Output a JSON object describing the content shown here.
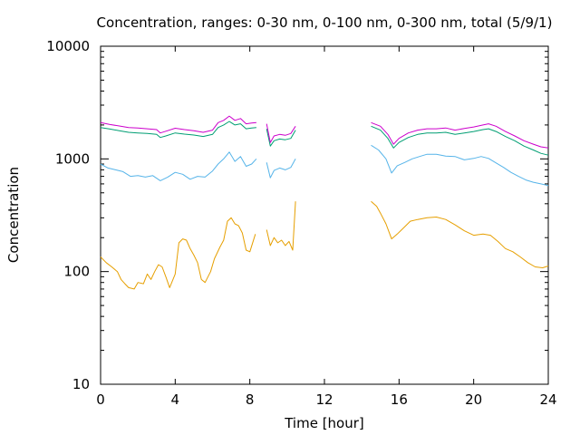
{
  "chart_data": {
    "type": "line",
    "title": "Concentration, ranges: 0-30 nm, 0-100 nm, 0-300 nm, total (5/9/1)",
    "xlabel": "Time [hour]",
    "ylabel": "Concentration",
    "xlim": [
      0,
      24
    ],
    "ylim": [
      10,
      10000
    ],
    "yscale": "log",
    "grid": false,
    "legend": "none",
    "x_ticks": [
      0,
      4,
      8,
      12,
      16,
      20,
      24
    ],
    "x_tick_labels": [
      "0",
      "4",
      "8",
      "12",
      "16",
      "20",
      "24"
    ],
    "y_ticks": [
      10,
      100,
      1000,
      10000
    ],
    "y_tick_labels": [
      "10",
      "100",
      "1000",
      "10000"
    ],
    "series": [
      {
        "color": "#e69f00",
        "segments": [
          [
            [
              0,
              135
            ],
            [
              0.3,
              120
            ],
            [
              0.6,
              110
            ],
            [
              0.9,
              100
            ],
            [
              1.1,
              85
            ],
            [
              1.3,
              78
            ],
            [
              1.5,
              72
            ],
            [
              1.8,
              70
            ],
            [
              2.0,
              80
            ],
            [
              2.3,
              78
            ],
            [
              2.5,
              95
            ],
            [
              2.7,
              85
            ],
            [
              2.9,
              100
            ],
            [
              3.1,
              115
            ],
            [
              3.3,
              110
            ],
            [
              3.5,
              90
            ],
            [
              3.7,
              72
            ],
            [
              4.0,
              95
            ],
            [
              4.2,
              180
            ],
            [
              4.4,
              195
            ],
            [
              4.6,
              190
            ],
            [
              4.8,
              160
            ],
            [
              5.0,
              140
            ],
            [
              5.2,
              120
            ],
            [
              5.4,
              85
            ],
            [
              5.6,
              80
            ],
            [
              5.9,
              100
            ],
            [
              6.1,
              130
            ],
            [
              6.4,
              165
            ],
            [
              6.6,
              190
            ],
            [
              6.8,
              280
            ],
            [
              7.0,
              300
            ],
            [
              7.2,
              265
            ],
            [
              7.4,
              255
            ],
            [
              7.6,
              220
            ],
            [
              7.8,
              155
            ],
            [
              8.0,
              150
            ],
            [
              8.3,
              215
            ]
          ],
          [
            [
              8.9,
              235
            ],
            [
              9.1,
              170
            ],
            [
              9.3,
              200
            ],
            [
              9.5,
              180
            ],
            [
              9.7,
              190
            ],
            [
              9.9,
              170
            ],
            [
              10.1,
              185
            ],
            [
              10.3,
              155
            ],
            [
              10.45,
              420
            ]
          ],
          [
            [
              14.5,
              420
            ],
            [
              14.8,
              380
            ],
            [
              15.0,
              330
            ],
            [
              15.3,
              265
            ],
            [
              15.6,
              195
            ],
            [
              15.9,
              215
            ],
            [
              16.2,
              240
            ],
            [
              16.6,
              280
            ],
            [
              17.0,
              290
            ],
            [
              17.5,
              300
            ],
            [
              18.0,
              305
            ],
            [
              18.5,
              290
            ],
            [
              19.0,
              260
            ],
            [
              19.5,
              230
            ],
            [
              20.0,
              210
            ],
            [
              20.5,
              215
            ],
            [
              20.9,
              210
            ],
            [
              21.3,
              185
            ],
            [
              21.7,
              160
            ],
            [
              22.1,
              150
            ],
            [
              22.5,
              135
            ],
            [
              22.9,
              120
            ],
            [
              23.3,
              110
            ],
            [
              23.7,
              108
            ],
            [
              24,
              112
            ]
          ]
        ]
      },
      {
        "color": "#56b4e9",
        "segments": [
          [
            [
              0,
              900
            ],
            [
              0.4,
              830
            ],
            [
              0.8,
              800
            ],
            [
              1.2,
              770
            ],
            [
              1.6,
              700
            ],
            [
              2.0,
              710
            ],
            [
              2.4,
              690
            ],
            [
              2.8,
              710
            ],
            [
              3.2,
              640
            ],
            [
              3.6,
              690
            ],
            [
              4.0,
              760
            ],
            [
              4.4,
              730
            ],
            [
              4.8,
              660
            ],
            [
              5.2,
              700
            ],
            [
              5.6,
              690
            ],
            [
              6.0,
              780
            ],
            [
              6.3,
              900
            ],
            [
              6.6,
              1000
            ],
            [
              6.9,
              1150
            ],
            [
              7.2,
              950
            ],
            [
              7.5,
              1050
            ],
            [
              7.8,
              860
            ],
            [
              8.1,
              900
            ],
            [
              8.35,
              1000
            ]
          ],
          [
            [
              8.9,
              930
            ],
            [
              9.1,
              680
            ],
            [
              9.3,
              790
            ],
            [
              9.6,
              830
            ],
            [
              9.9,
              800
            ],
            [
              10.2,
              840
            ],
            [
              10.45,
              1000
            ]
          ],
          [
            [
              14.5,
              1320
            ],
            [
              14.9,
              1200
            ],
            [
              15.3,
              1000
            ],
            [
              15.6,
              750
            ],
            [
              15.9,
              870
            ],
            [
              16.3,
              930
            ],
            [
              16.7,
              1000
            ],
            [
              17.1,
              1050
            ],
            [
              17.5,
              1100
            ],
            [
              18.0,
              1100
            ],
            [
              18.5,
              1060
            ],
            [
              19.0,
              1050
            ],
            [
              19.5,
              980
            ],
            [
              20.0,
              1010
            ],
            [
              20.4,
              1050
            ],
            [
              20.8,
              1010
            ],
            [
              21.2,
              920
            ],
            [
              21.6,
              840
            ],
            [
              22.0,
              760
            ],
            [
              22.4,
              700
            ],
            [
              22.8,
              650
            ],
            [
              23.2,
              620
            ],
            [
              23.6,
              600
            ],
            [
              24,
              580
            ]
          ]
        ]
      },
      {
        "color": "#009e73",
        "segments": [
          [
            [
              0,
              1900
            ],
            [
              0.5,
              1840
            ],
            [
              1.0,
              1780
            ],
            [
              1.5,
              1720
            ],
            [
              2.0,
              1700
            ],
            [
              2.5,
              1680
            ],
            [
              3.0,
              1650
            ],
            [
              3.2,
              1550
            ],
            [
              3.5,
              1600
            ],
            [
              4.0,
              1700
            ],
            [
              4.5,
              1660
            ],
            [
              5.0,
              1630
            ],
            [
              5.5,
              1580
            ],
            [
              6.0,
              1650
            ],
            [
              6.3,
              1900
            ],
            [
              6.6,
              2000
            ],
            [
              6.9,
              2150
            ],
            [
              7.2,
              2000
            ],
            [
              7.5,
              2050
            ],
            [
              7.8,
              1850
            ],
            [
              8.1,
              1880
            ],
            [
              8.35,
              1900
            ]
          ],
          [
            [
              8.9,
              1850
            ],
            [
              9.1,
              1300
            ],
            [
              9.3,
              1450
            ],
            [
              9.6,
              1500
            ],
            [
              9.9,
              1480
            ],
            [
              10.2,
              1520
            ],
            [
              10.45,
              1800
            ]
          ],
          [
            [
              14.5,
              1950
            ],
            [
              15.0,
              1800
            ],
            [
              15.4,
              1520
            ],
            [
              15.7,
              1250
            ],
            [
              16.0,
              1400
            ],
            [
              16.5,
              1550
            ],
            [
              17.0,
              1650
            ],
            [
              17.5,
              1700
            ],
            [
              18.0,
              1700
            ],
            [
              18.5,
              1720
            ],
            [
              19.0,
              1650
            ],
            [
              19.5,
              1700
            ],
            [
              20.0,
              1750
            ],
            [
              20.5,
              1820
            ],
            [
              20.8,
              1850
            ],
            [
              21.2,
              1750
            ],
            [
              21.7,
              1580
            ],
            [
              22.2,
              1450
            ],
            [
              22.7,
              1300
            ],
            [
              23.2,
              1200
            ],
            [
              23.6,
              1120
            ],
            [
              24,
              1080
            ]
          ]
        ]
      },
      {
        "color": "#cc00cc",
        "segments": [
          [
            [
              0,
              2100
            ],
            [
              0.5,
              2020
            ],
            [
              1.0,
              1960
            ],
            [
              1.5,
              1900
            ],
            [
              2.0,
              1880
            ],
            [
              2.5,
              1850
            ],
            [
              3.0,
              1820
            ],
            [
              3.2,
              1700
            ],
            [
              3.5,
              1760
            ],
            [
              4.0,
              1870
            ],
            [
              4.5,
              1820
            ],
            [
              5.0,
              1780
            ],
            [
              5.5,
              1720
            ],
            [
              6.0,
              1800
            ],
            [
              6.3,
              2100
            ],
            [
              6.6,
              2200
            ],
            [
              6.9,
              2400
            ],
            [
              7.2,
              2200
            ],
            [
              7.5,
              2280
            ],
            [
              7.8,
              2050
            ],
            [
              8.1,
              2080
            ],
            [
              8.35,
              2100
            ]
          ],
          [
            [
              8.9,
              2050
            ],
            [
              9.1,
              1400
            ],
            [
              9.3,
              1600
            ],
            [
              9.6,
              1650
            ],
            [
              9.9,
              1620
            ],
            [
              10.2,
              1680
            ],
            [
              10.45,
              1950
            ]
          ],
          [
            [
              14.5,
              2100
            ],
            [
              15.0,
              1950
            ],
            [
              15.4,
              1650
            ],
            [
              15.7,
              1350
            ],
            [
              16.0,
              1520
            ],
            [
              16.5,
              1700
            ],
            [
              17.0,
              1800
            ],
            [
              17.5,
              1850
            ],
            [
              18.0,
              1850
            ],
            [
              18.5,
              1880
            ],
            [
              19.0,
              1800
            ],
            [
              19.5,
              1860
            ],
            [
              20.0,
              1920
            ],
            [
              20.5,
              2000
            ],
            [
              20.8,
              2050
            ],
            [
              21.2,
              1950
            ],
            [
              21.7,
              1750
            ],
            [
              22.2,
              1600
            ],
            [
              22.7,
              1450
            ],
            [
              23.2,
              1350
            ],
            [
              23.6,
              1280
            ],
            [
              24,
              1250
            ]
          ]
        ]
      }
    ]
  }
}
